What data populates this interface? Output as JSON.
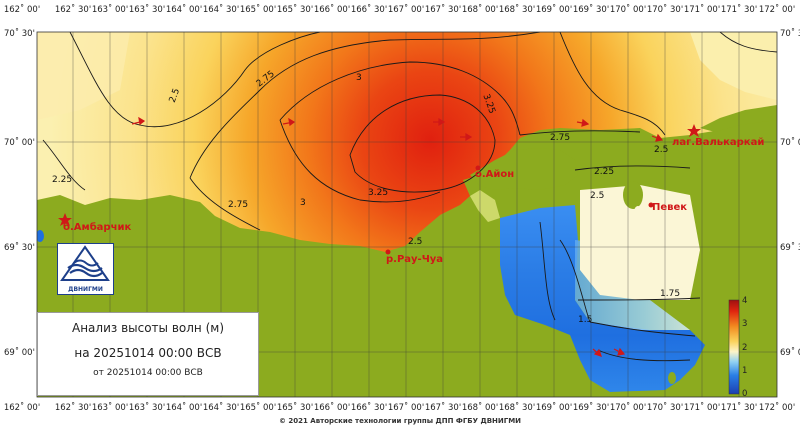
{
  "top_ticks": [
    "162˚ 00'",
    "162˚ 30'",
    "163˚ 00'",
    "163˚ 30'",
    "164˚ 00'",
    "164˚ 30'",
    "165˚ 00'",
    "165˚ 30'",
    "166˚ 00'",
    "166˚ 30'",
    "167˚ 00'",
    "167˚ 30'",
    "168˚ 00'",
    "168˚ 30'",
    "169˚ 00'",
    "169˚ 30'",
    "170˚ 00'",
    "170˚ 30'",
    "171˚ 00'",
    "171˚ 30'",
    "172˚ 00'"
  ],
  "bottom_ticks": [
    "162˚ 00'",
    "162˚ 30'",
    "163˚ 00'",
    "163˚ 30'",
    "164˚ 00'",
    "164˚ 30'",
    "165˚ 00'",
    "165˚ 30'",
    "166˚ 00'",
    "166˚ 30'",
    "167˚ 00'",
    "167˚ 30'",
    "168˚ 00'",
    "168˚ 30'",
    "169˚ 00'",
    "169˚ 30'",
    "170˚ 00'",
    "170˚ 30'",
    "171˚ 00'",
    "171˚ 30'",
    "172˚ 00'"
  ],
  "left_ticks": [
    "70˚ 30'",
    "70˚ 00'",
    "69˚ 30'",
    "69˚ 00'"
  ],
  "right_ticks": [
    "70˚ 3",
    "70˚ 0",
    "69˚ 3",
    "69˚ 0"
  ],
  "contour_labels": [
    "2.5",
    "2.75",
    "3",
    "3.25",
    "2.25",
    "2.75",
    "3",
    "3.25",
    "2.5",
    "2.75",
    "2.5",
    "2.25",
    "1.75",
    "1.5",
    "2.5"
  ],
  "places": [
    "лаг.Валькаркай",
    "о.Айон",
    "Певек",
    "б.Амбарчик",
    "р.Рау-Чуа"
  ],
  "colorbar_ticks": [
    "4",
    "3",
    "2",
    "1",
    "0"
  ],
  "colors": {
    "land": "#8cab1f",
    "ocean": "#ffffff",
    "peak": "#e0260f",
    "low": "#1f6fe0",
    "text_red": "#d01818"
  },
  "info": {
    "title": "Анализ высоты волн (м)",
    "date": "на 20251014 00:00 ВСВ",
    "from": "от 20251014 00:00 ВСВ"
  },
  "logo": {
    "caption": "ДВНИГМИ"
  },
  "copyright": "© 2021 Авторские технологии группы ДПП ФГБУ ДВНИГМИ"
}
